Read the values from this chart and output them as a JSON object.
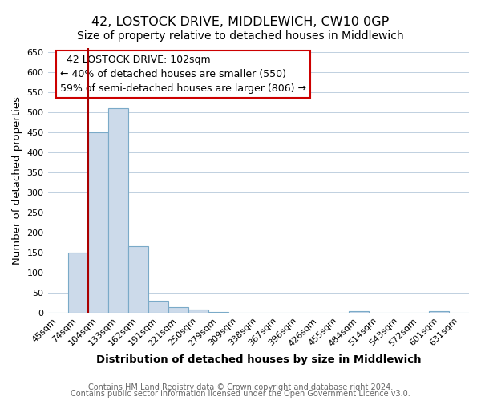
{
  "title": "42, LOSTOCK DRIVE, MIDDLEWICH, CW10 0GP",
  "subtitle": "Size of property relative to detached houses in Middlewich",
  "xlabel": "Distribution of detached houses by size in Middlewich",
  "ylabel": "Number of detached properties",
  "footer_line1": "Contains HM Land Registry data © Crown copyright and database right 2024.",
  "footer_line2": "Contains public sector information licensed under the Open Government Licence v3.0.",
  "bin_labels": [
    "45sqm",
    "74sqm",
    "104sqm",
    "133sqm",
    "162sqm",
    "191sqm",
    "221sqm",
    "250sqm",
    "279sqm",
    "309sqm",
    "338sqm",
    "367sqm",
    "396sqm",
    "426sqm",
    "455sqm",
    "484sqm",
    "514sqm",
    "543sqm",
    "572sqm",
    "601sqm",
    "631sqm"
  ],
  "bar_values": [
    0,
    150,
    450,
    510,
    165,
    30,
    13,
    8,
    2,
    0,
    0,
    0,
    0,
    0,
    0,
    3,
    0,
    0,
    0,
    3,
    0
  ],
  "bar_color": "#ccdaea",
  "bar_edge_color": "#7aaac8",
  "bar_edge_width": 0.8,
  "red_line_x": 1.5,
  "red_line_color": "#aa0000",
  "annotation_box_color": "#cc0000",
  "annotation_text_line1": "  42 LOSTOCK DRIVE: 102sqm  ",
  "annotation_text_line2": "← 40% of detached houses are smaller (550)",
  "annotation_text_line3": "59% of semi-detached houses are larger (806) →",
  "ylim": [
    0,
    660
  ],
  "yticks": [
    0,
    50,
    100,
    150,
    200,
    250,
    300,
    350,
    400,
    450,
    500,
    550,
    600,
    650
  ],
  "background_color": "#ffffff",
  "grid_color": "#c0d0e0",
  "title_fontsize": 11.5,
  "subtitle_fontsize": 10,
  "axis_label_fontsize": 9.5,
  "tick_fontsize": 8,
  "footer_fontsize": 7,
  "annotation_fontsize": 9
}
